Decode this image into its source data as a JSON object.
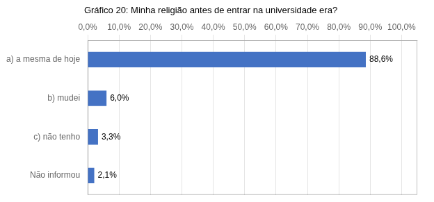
{
  "chart_data": {
    "type": "bar",
    "orientation": "horizontal",
    "title": "Gráfico 20: Minha religião antes de entrar na universidade era?",
    "categories": [
      "Não informou",
      "c) não tenho",
      "b) mudei",
      "a) a mesma de hoje"
    ],
    "values": [
      2.1,
      3.3,
      6.0,
      88.6
    ],
    "value_labels": [
      "2,1%",
      "3,3%",
      "6,0%",
      "88,6%"
    ],
    "data_labels": true,
    "color": "#4472C4",
    "xlim": [
      0,
      105
    ],
    "xticks": [
      {
        "value": 0,
        "label": "0,0%"
      },
      {
        "value": 10,
        "label": "10,0%"
      },
      {
        "value": 20,
        "label": "20,0%"
      },
      {
        "value": 30,
        "label": "30,0%"
      },
      {
        "value": 40,
        "label": "40,0%"
      },
      {
        "value": 50,
        "label": "50,0%"
      },
      {
        "value": 60,
        "label": "60,0%"
      },
      {
        "value": 70,
        "label": "70,0%"
      },
      {
        "value": 80,
        "label": "80,0%"
      },
      {
        "value": 90,
        "label": "90,0%"
      },
      {
        "value": 100,
        "label": "100,0%"
      }
    ],
    "grid": true
  }
}
